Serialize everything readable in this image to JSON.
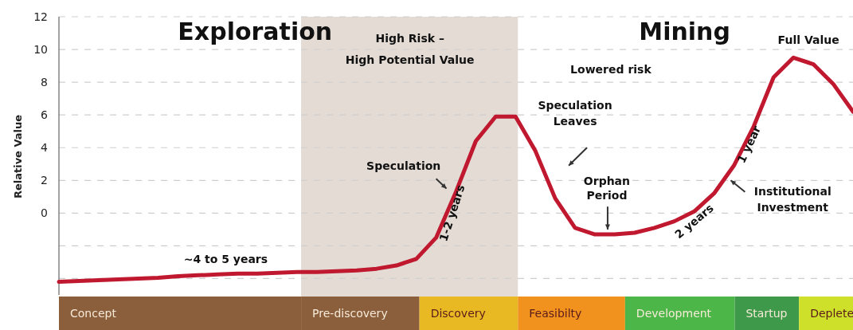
{
  "chart_data": [
    {
      "type": "line",
      "ylabel": "Relative Value",
      "categories": [
        null,
        null,
        null,
        null,
        null,
        null,
        null,
        null,
        null,
        null,
        null,
        null,
        null,
        null,
        null,
        null,
        null,
        null,
        null,
        null,
        null,
        null,
        null,
        null,
        null,
        null,
        null,
        null,
        null,
        null,
        null,
        null,
        null,
        null,
        null,
        null,
        null,
        null,
        null,
        null,
        null
      ],
      "ylim": [
        -5,
        12
      ],
      "yticks": [
        {
          "value": -4,
          "label": null
        },
        {
          "value": -2,
          "label": null
        },
        0,
        2,
        4,
        6,
        8,
        10,
        12
      ],
      "tick_labels": "y",
      "grid": "y",
      "line_style": "solid",
      "series": [
        {
          "color": "#c0182f",
          "values": [
            -4.2,
            -4.15,
            -4.1,
            -4.05,
            -4.0,
            -3.95,
            -3.85,
            -3.8,
            -3.75,
            -3.7,
            -3.7,
            -3.65,
            -3.6,
            -3.6,
            -3.55,
            -3.5,
            -3.4,
            -3.2,
            -2.8,
            -1.5,
            1.3,
            4.4,
            5.9,
            5.9,
            3.8,
            0.9,
            -0.9,
            -1.3,
            -1.3,
            -1.2,
            -0.9,
            -0.5,
            0.1,
            1.2,
            2.9,
            5.3,
            8.3,
            9.5,
            9.1,
            7.9,
            6.2
          ]
        }
      ],
      "annotations": [
        "Exploration",
        "Mining",
        "High Risk –\nHigh Potential Value",
        "Lowered risk",
        "Full Value",
        "Speculation\nLeaves",
        "Speculation",
        "~4 to 5 years",
        "1-2 years",
        "Orphan\nPeriod",
        "2 years",
        "1 year",
        "Institutional\nInvestment"
      ]
    },
    {
      "type": "other",
      "categories": [
        "Concept",
        "Pre-discovery",
        "Discovery",
        "Feasibilty",
        "Development",
        "Startup",
        "Deplete"
      ],
      "colors": [
        "#8b5e3c",
        "#8b5e3c",
        "#e8b923",
        "#f2921e",
        "#4cb748",
        "#3e9a4a",
        "#cfe02a"
      ]
    }
  ]
}
